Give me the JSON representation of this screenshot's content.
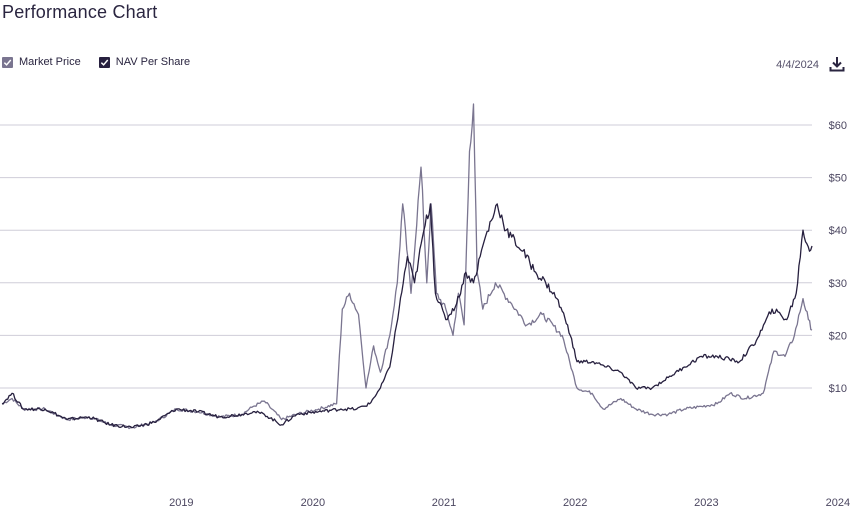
{
  "header": {
    "title": "Performance Chart",
    "date": "4/4/2024"
  },
  "legend": [
    {
      "label": "Market Price",
      "color": "#7a7590",
      "checked": true
    },
    {
      "label": "NAV Per Share",
      "color": "#27203f",
      "checked": true
    }
  ],
  "icons": {
    "download": "download-icon",
    "checkbox": "checkbox-checked-icon"
  },
  "chart_data": {
    "type": "line",
    "title": "Performance Chart",
    "xlabel": "",
    "ylabel": "",
    "grid": true,
    "legend_position": "top-left",
    "x_ticks": [
      "2019",
      "2020",
      "2021",
      "2022",
      "2023",
      "2024"
    ],
    "y_ticks": [
      "$10",
      "$20",
      "$30",
      "$40",
      "$50",
      "$60"
    ],
    "xlim": [
      "2018-02-01",
      "2024-04-04"
    ],
    "ylim": [
      -10,
      65
    ],
    "series": [
      {
        "name": "Market Price",
        "color": "#7a7590",
        "points": [
          [
            "2018-02-01",
            7
          ],
          [
            "2018-03-01",
            8
          ],
          [
            "2018-04-01",
            6
          ],
          [
            "2018-06-01",
            6
          ],
          [
            "2018-08-01",
            4
          ],
          [
            "2018-10-01",
            4.5
          ],
          [
            "2018-12-01",
            3
          ],
          [
            "2019-02-01",
            2.5
          ],
          [
            "2019-04-01",
            3.5
          ],
          [
            "2019-06-01",
            6
          ],
          [
            "2019-08-01",
            5.5
          ],
          [
            "2019-10-01",
            4.5
          ],
          [
            "2019-12-01",
            5
          ],
          [
            "2020-01-01",
            6.5
          ],
          [
            "2020-02-01",
            7.5
          ],
          [
            "2020-03-20",
            4
          ],
          [
            "2020-05-01",
            5
          ],
          [
            "2020-07-01",
            6
          ],
          [
            "2020-08-20",
            7
          ],
          [
            "2020-09-05",
            25
          ],
          [
            "2020-09-25",
            28
          ],
          [
            "2020-10-20",
            24
          ],
          [
            "2020-11-10",
            10
          ],
          [
            "2020-12-01",
            18
          ],
          [
            "2020-12-20",
            13
          ],
          [
            "2021-01-15",
            20
          ],
          [
            "2021-02-05",
            30
          ],
          [
            "2021-02-20",
            45
          ],
          [
            "2021-03-15",
            28
          ],
          [
            "2021-04-12",
            52
          ],
          [
            "2021-04-28",
            30
          ],
          [
            "2021-05-10",
            45
          ],
          [
            "2021-05-25",
            28
          ],
          [
            "2021-06-20",
            25
          ],
          [
            "2021-07-10",
            20
          ],
          [
            "2021-07-25",
            28
          ],
          [
            "2021-08-10",
            22
          ],
          [
            "2021-08-25",
            55
          ],
          [
            "2021-09-05",
            64
          ],
          [
            "2021-09-15",
            32
          ],
          [
            "2021-10-01",
            25
          ],
          [
            "2021-11-05",
            30
          ],
          [
            "2021-12-20",
            26
          ],
          [
            "2022-02-01",
            22
          ],
          [
            "2022-03-15",
            24
          ],
          [
            "2022-05-10",
            20
          ],
          [
            "2022-06-20",
            10
          ],
          [
            "2022-08-01",
            9
          ],
          [
            "2022-09-01",
            6
          ],
          [
            "2022-10-20",
            8
          ],
          [
            "2022-12-01",
            6
          ],
          [
            "2023-01-15",
            5
          ],
          [
            "2023-03-01",
            5
          ],
          [
            "2023-04-15",
            6
          ],
          [
            "2023-06-01",
            6.5
          ],
          [
            "2023-07-15",
            7
          ],
          [
            "2023-08-20",
            9
          ],
          [
            "2023-10-01",
            8
          ],
          [
            "2023-11-20",
            9
          ],
          [
            "2023-12-20",
            17
          ],
          [
            "2024-01-20",
            16
          ],
          [
            "2024-02-15",
            20
          ],
          [
            "2024-03-10",
            27
          ],
          [
            "2024-03-25",
            23
          ],
          [
            "2024-04-04",
            21
          ]
        ]
      },
      {
        "name": "NAV Per Share",
        "color": "#27203f",
        "points": [
          [
            "2018-02-01",
            7
          ],
          [
            "2018-03-01",
            9
          ],
          [
            "2018-04-01",
            6
          ],
          [
            "2018-06-01",
            6
          ],
          [
            "2018-08-01",
            4
          ],
          [
            "2018-10-01",
            4.5
          ],
          [
            "2018-12-01",
            3
          ],
          [
            "2019-02-01",
            2.5
          ],
          [
            "2019-04-01",
            3.5
          ],
          [
            "2019-06-01",
            6
          ],
          [
            "2019-08-01",
            5.5
          ],
          [
            "2019-10-01",
            4.5
          ],
          [
            "2019-12-01",
            5
          ],
          [
            "2020-01-01",
            5.5
          ],
          [
            "2020-02-01",
            5
          ],
          [
            "2020-03-20",
            3
          ],
          [
            "2020-05-01",
            5
          ],
          [
            "2020-07-01",
            5.5
          ],
          [
            "2020-09-01",
            6
          ],
          [
            "2020-10-15",
            6
          ],
          [
            "2020-11-20",
            7
          ],
          [
            "2020-12-20",
            10
          ],
          [
            "2021-01-15",
            14
          ],
          [
            "2021-02-10",
            25
          ],
          [
            "2021-03-05",
            35
          ],
          [
            "2021-03-25",
            30
          ],
          [
            "2021-04-20",
            40
          ],
          [
            "2021-05-08",
            45
          ],
          [
            "2021-05-22",
            28
          ],
          [
            "2021-06-20",
            23
          ],
          [
            "2021-07-20",
            26
          ],
          [
            "2021-08-15",
            32
          ],
          [
            "2021-09-05",
            30
          ],
          [
            "2021-10-05",
            38
          ],
          [
            "2021-11-10",
            45
          ],
          [
            "2021-12-05",
            40
          ],
          [
            "2022-01-20",
            36
          ],
          [
            "2022-02-25",
            32
          ],
          [
            "2022-03-25",
            30
          ],
          [
            "2022-04-25",
            27
          ],
          [
            "2022-05-25",
            22
          ],
          [
            "2022-06-20",
            15
          ],
          [
            "2022-08-01",
            15
          ],
          [
            "2022-09-10",
            14
          ],
          [
            "2022-10-20",
            13
          ],
          [
            "2022-12-01",
            10
          ],
          [
            "2023-01-15",
            10
          ],
          [
            "2023-03-01",
            12
          ],
          [
            "2023-04-15",
            14
          ],
          [
            "2023-06-01",
            16
          ],
          [
            "2023-07-15",
            16
          ],
          [
            "2023-09-15",
            15
          ],
          [
            "2023-11-01",
            19
          ],
          [
            "2023-12-15",
            25
          ],
          [
            "2024-01-25",
            23
          ],
          [
            "2024-02-20",
            28
          ],
          [
            "2024-03-10",
            40
          ],
          [
            "2024-03-28",
            36
          ],
          [
            "2024-04-04",
            37
          ]
        ]
      }
    ]
  }
}
